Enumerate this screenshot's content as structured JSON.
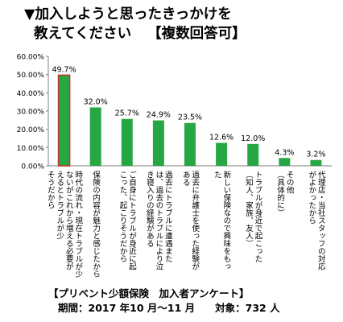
{
  "title": {
    "line1": "▼加入しようと思ったきっかけを",
    "line2": "教えてください",
    "tag": "【複数回答可】"
  },
  "footer": {
    "survey": "【プリベント少額保険　加入者アンケート】",
    "period": "期間：2017 年10 月～11 月　　対象：732 人"
  },
  "chart_data": {
    "type": "bar",
    "title": "",
    "xlabel": "",
    "ylabel": "",
    "ylim": [
      0,
      60
    ],
    "yticks": [
      "0.00%",
      "10.00%",
      "20.00%",
      "30.00%",
      "40.00%",
      "50.00%",
      "60.00%"
    ],
    "grid": false,
    "categories": [
      "時代の流れ・現在トラブルが少ないがこれから増える必要があると感じたから",
      "保険の内容が魅力と感じたから",
      "ご自身にトラブルが身近に起こった、起こりそうだから",
      "過去にトラブルに遭遇または、過去のトラブルにより泣き寝入りの経験がある",
      "過去に弁護士を使った経験がある",
      "新しい保険なので興味をもった",
      "トラブルが身近で起こった（知人、家族、友人）",
      "その他（具体的に）",
      "代理店・当社スタッフの対応がよかったから"
    ],
    "values": [
      49.7,
      32.0,
      25.7,
      24.9,
      23.5,
      12.6,
      12.0,
      4.3,
      3.2
    ],
    "value_labels": [
      "49.7%",
      "32.0%",
      "25.7%",
      "24.9%",
      "23.5%",
      "12.6%",
      "12.0%",
      "4.3%",
      "3.2%"
    ],
    "category_lines": [
      [
        "時代の流れ・現在トラブルが少",
        "ないがこれから増える必要が",
        "えるとトラブルが少",
        "そうだから"
      ],
      [
        "保険の内容が魅力と感じたから"
      ],
      [
        "ご自身にトラブルが身近に起",
        "こった、起こりそうだから"
      ],
      [
        "過去にトラブルに遭遇また",
        "は、過去のトラブルにより泣",
        "き寝入りの経験がある"
      ],
      [
        "過去に弁護士を使った経験が",
        "ある"
      ],
      [
        "新しい保険なので興味をもっ",
        "た"
      ],
      [
        "トラブルが身近で起こった",
        "（知人、家族、友人）"
      ],
      [
        "その他",
        "（具体的に）"
      ],
      [
        "代理店・当社スタッフの対応",
        "がよかったから"
      ]
    ],
    "colors": {
      "bar": "#27a744",
      "highlight_bar": "#27a744",
      "highlight_border": "#c0392b",
      "axis": "#808080"
    },
    "highlight_index": 0
  }
}
